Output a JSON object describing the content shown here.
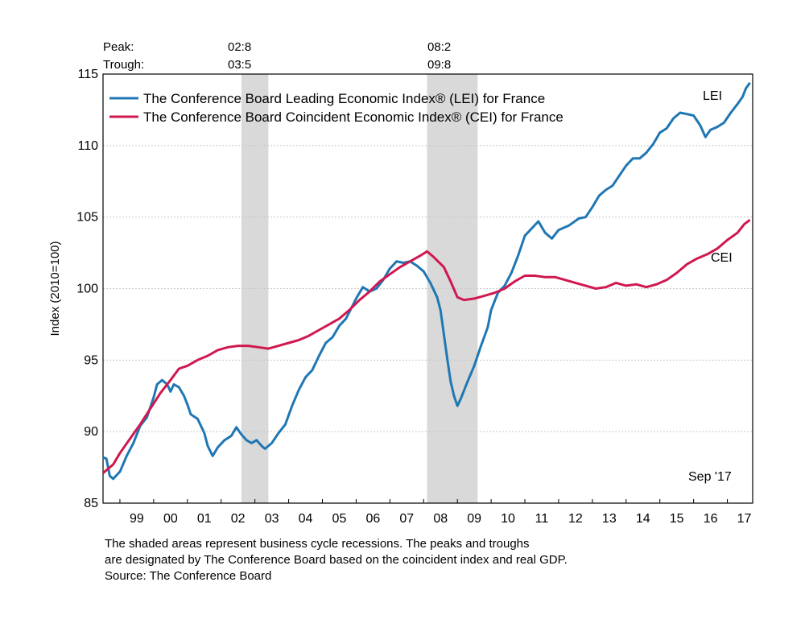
{
  "header": {
    "peak_label": "Peak:",
    "trough_label": "Trough:",
    "recessions": [
      {
        "peak": "02:8",
        "trough": "03:5"
      },
      {
        "peak": "08:2",
        "trough": "09:8"
      }
    ]
  },
  "footnote": {
    "line1": "The shaded areas represent business cycle recessions. The peaks and troughs",
    "line2": "are designated by The Conference Board based on the coincident index and real GDP.",
    "line3": "Source: The Conference Board"
  },
  "chart_data": {
    "type": "line",
    "ylabel": "Index (2010=100)",
    "ylim": [
      85,
      115
    ],
    "y_ticks": [
      85,
      90,
      95,
      100,
      105,
      110,
      115
    ],
    "xlim": [
      1998.5,
      2017.75
    ],
    "x_tick_labels": [
      "99",
      "00",
      "01",
      "02",
      "03",
      "04",
      "05",
      "06",
      "07",
      "08",
      "09",
      "10",
      "11",
      "12",
      "13",
      "14",
      "15",
      "16",
      "17"
    ],
    "date_note": "Sep '17",
    "grid": true,
    "legend": "top-left",
    "shaded_periods": [
      {
        "from": 2002.6,
        "to": 2003.4
      },
      {
        "from": 2008.1,
        "to": 2009.6
      }
    ],
    "series": [
      {
        "name": "The Conference Board Leading Economic Index® (LEI) for France",
        "label": "LEI",
        "color": "#1f77b4",
        "points": [
          [
            1998.5,
            88.2
          ],
          [
            1998.6,
            88.1
          ],
          [
            1998.7,
            86.9
          ],
          [
            1998.8,
            86.7
          ],
          [
            1999.0,
            87.2
          ],
          [
            1999.2,
            88.3
          ],
          [
            1999.4,
            89.2
          ],
          [
            1999.6,
            90.4
          ],
          [
            1999.8,
            91.0
          ],
          [
            2000.0,
            92.4
          ],
          [
            2000.1,
            93.3
          ],
          [
            2000.25,
            93.6
          ],
          [
            2000.4,
            93.3
          ],
          [
            2000.5,
            92.8
          ],
          [
            2000.6,
            93.3
          ],
          [
            2000.75,
            93.1
          ],
          [
            2000.9,
            92.5
          ],
          [
            2001.0,
            91.9
          ],
          [
            2001.1,
            91.2
          ],
          [
            2001.3,
            90.9
          ],
          [
            2001.5,
            89.9
          ],
          [
            2001.6,
            89.0
          ],
          [
            2001.75,
            88.3
          ],
          [
            2001.9,
            88.9
          ],
          [
            2002.1,
            89.4
          ],
          [
            2002.3,
            89.7
          ],
          [
            2002.45,
            90.3
          ],
          [
            2002.6,
            89.8
          ],
          [
            2002.75,
            89.4
          ],
          [
            2002.9,
            89.2
          ],
          [
            2003.05,
            89.4
          ],
          [
            2003.2,
            89.0
          ],
          [
            2003.3,
            88.8
          ],
          [
            2003.5,
            89.2
          ],
          [
            2003.7,
            89.9
          ],
          [
            2003.9,
            90.5
          ],
          [
            2004.1,
            91.8
          ],
          [
            2004.3,
            92.9
          ],
          [
            2004.5,
            93.8
          ],
          [
            2004.7,
            94.3
          ],
          [
            2004.9,
            95.3
          ],
          [
            2005.1,
            96.2
          ],
          [
            2005.3,
            96.6
          ],
          [
            2005.5,
            97.4
          ],
          [
            2005.7,
            97.9
          ],
          [
            2006.0,
            99.3
          ],
          [
            2006.2,
            100.1
          ],
          [
            2006.4,
            99.8
          ],
          [
            2006.6,
            100.0
          ],
          [
            2006.8,
            100.6
          ],
          [
            2007.0,
            101.4
          ],
          [
            2007.2,
            101.9
          ],
          [
            2007.4,
            101.8
          ],
          [
            2007.6,
            101.9
          ],
          [
            2007.8,
            101.6
          ],
          [
            2008.0,
            101.2
          ],
          [
            2008.2,
            100.4
          ],
          [
            2008.4,
            99.4
          ],
          [
            2008.5,
            98.5
          ],
          [
            2008.6,
            96.8
          ],
          [
            2008.7,
            95.1
          ],
          [
            2008.8,
            93.5
          ],
          [
            2008.9,
            92.5
          ],
          [
            2009.0,
            91.8
          ],
          [
            2009.1,
            92.3
          ],
          [
            2009.3,
            93.5
          ],
          [
            2009.5,
            94.6
          ],
          [
            2009.7,
            96.0
          ],
          [
            2009.9,
            97.3
          ],
          [
            2010.0,
            98.5
          ],
          [
            2010.2,
            99.7
          ],
          [
            2010.4,
            100.2
          ],
          [
            2010.6,
            101.1
          ],
          [
            2010.8,
            102.3
          ],
          [
            2011.0,
            103.7
          ],
          [
            2011.2,
            104.2
          ],
          [
            2011.4,
            104.7
          ],
          [
            2011.6,
            103.9
          ],
          [
            2011.8,
            103.5
          ],
          [
            2012.0,
            104.1
          ],
          [
            2012.3,
            104.4
          ],
          [
            2012.6,
            104.9
          ],
          [
            2012.8,
            105.0
          ],
          [
            2013.0,
            105.7
          ],
          [
            2013.2,
            106.5
          ],
          [
            2013.4,
            106.9
          ],
          [
            2013.6,
            107.2
          ],
          [
            2013.8,
            107.9
          ],
          [
            2014.0,
            108.6
          ],
          [
            2014.2,
            109.1
          ],
          [
            2014.4,
            109.1
          ],
          [
            2014.6,
            109.5
          ],
          [
            2014.8,
            110.1
          ],
          [
            2015.0,
            110.9
          ],
          [
            2015.2,
            111.2
          ],
          [
            2015.4,
            111.9
          ],
          [
            2015.6,
            112.3
          ],
          [
            2015.8,
            112.2
          ],
          [
            2016.0,
            112.1
          ],
          [
            2016.2,
            111.4
          ],
          [
            2016.35,
            110.6
          ],
          [
            2016.5,
            111.1
          ],
          [
            2016.7,
            111.3
          ],
          [
            2016.9,
            111.6
          ],
          [
            2017.1,
            112.3
          ],
          [
            2017.3,
            112.9
          ],
          [
            2017.45,
            113.4
          ],
          [
            2017.55,
            114.0
          ],
          [
            2017.67,
            114.4
          ]
        ]
      },
      {
        "name": "The Conference Board Coincident Economic Index® (CEI) for France",
        "label": "CEI",
        "color": "#d0184f",
        "points": [
          [
            1998.5,
            87.1
          ],
          [
            1998.8,
            87.7
          ],
          [
            1999.0,
            88.5
          ],
          [
            1999.3,
            89.5
          ],
          [
            1999.6,
            90.5
          ],
          [
            1999.9,
            91.6
          ],
          [
            2000.2,
            92.7
          ],
          [
            2000.5,
            93.6
          ],
          [
            2000.75,
            94.4
          ],
          [
            2001.0,
            94.6
          ],
          [
            2001.3,
            95.0
          ],
          [
            2001.6,
            95.3
          ],
          [
            2001.9,
            95.7
          ],
          [
            2002.2,
            95.9
          ],
          [
            2002.5,
            96.0
          ],
          [
            2002.8,
            96.0
          ],
          [
            2003.1,
            95.9
          ],
          [
            2003.4,
            95.8
          ],
          [
            2003.7,
            96.0
          ],
          [
            2004.0,
            96.2
          ],
          [
            2004.3,
            96.4
          ],
          [
            2004.6,
            96.7
          ],
          [
            2004.9,
            97.1
          ],
          [
            2005.2,
            97.5
          ],
          [
            2005.5,
            97.9
          ],
          [
            2005.8,
            98.5
          ],
          [
            2006.1,
            99.2
          ],
          [
            2006.4,
            99.8
          ],
          [
            2006.7,
            100.5
          ],
          [
            2007.0,
            101.0
          ],
          [
            2007.3,
            101.5
          ],
          [
            2007.6,
            101.9
          ],
          [
            2007.9,
            102.3
          ],
          [
            2008.1,
            102.6
          ],
          [
            2008.3,
            102.2
          ],
          [
            2008.6,
            101.5
          ],
          [
            2008.8,
            100.5
          ],
          [
            2009.0,
            99.4
          ],
          [
            2009.2,
            99.2
          ],
          [
            2009.5,
            99.3
          ],
          [
            2009.8,
            99.5
          ],
          [
            2010.1,
            99.7
          ],
          [
            2010.4,
            100.0
          ],
          [
            2010.7,
            100.5
          ],
          [
            2011.0,
            100.9
          ],
          [
            2011.3,
            100.9
          ],
          [
            2011.6,
            100.8
          ],
          [
            2011.9,
            100.8
          ],
          [
            2012.2,
            100.6
          ],
          [
            2012.5,
            100.4
          ],
          [
            2012.8,
            100.2
          ],
          [
            2013.1,
            100.0
          ],
          [
            2013.4,
            100.1
          ],
          [
            2013.7,
            100.4
          ],
          [
            2014.0,
            100.2
          ],
          [
            2014.3,
            100.3
          ],
          [
            2014.6,
            100.1
          ],
          [
            2014.9,
            100.3
          ],
          [
            2015.2,
            100.6
          ],
          [
            2015.5,
            101.1
          ],
          [
            2015.8,
            101.7
          ],
          [
            2016.1,
            102.1
          ],
          [
            2016.4,
            102.4
          ],
          [
            2016.7,
            102.8
          ],
          [
            2017.0,
            103.4
          ],
          [
            2017.3,
            103.9
          ],
          [
            2017.5,
            104.5
          ],
          [
            2017.67,
            104.8
          ]
        ]
      }
    ]
  }
}
